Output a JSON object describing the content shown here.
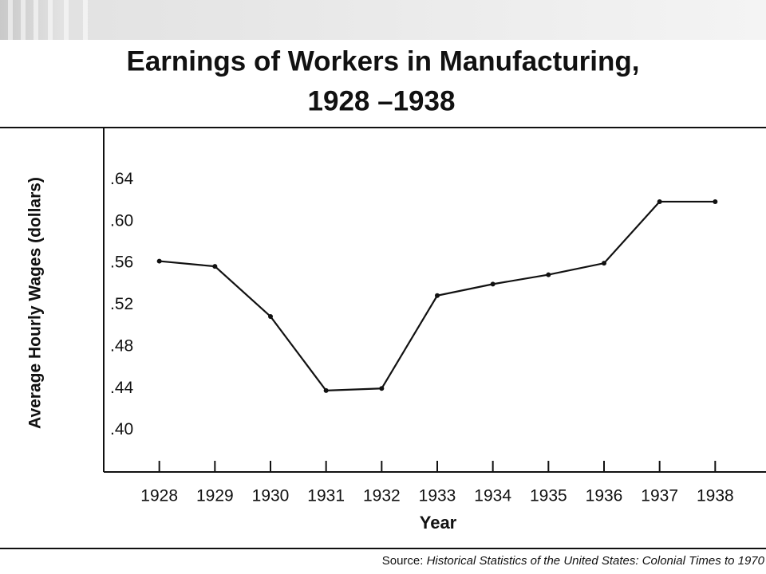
{
  "chart_data": {
    "type": "line",
    "title": "Earnings of Workers in Manufacturing,",
    "subtitle": "1928 –1938",
    "y_label": "Average Hourly Wages (dollars)",
    "x_label": "Year",
    "source_label": "Source:",
    "source_text": "Historical Statistics of the United States: Colonial Times to 1970",
    "x": [
      1928,
      1929,
      1930,
      1931,
      1932,
      1933,
      1934,
      1935,
      1936,
      1937,
      1938
    ],
    "values": [
      0.562,
      0.557,
      0.509,
      0.438,
      0.44,
      0.529,
      0.54,
      0.549,
      0.56,
      0.619,
      0.619
    ],
    "color": "#111111",
    "xlim": [
      1927,
      1939
    ],
    "xticks": [
      1928,
      1929,
      1930,
      1931,
      1932,
      1933,
      1934,
      1935,
      1936,
      1937,
      1938
    ],
    "ylim": [
      0.36,
      0.69
    ],
    "yticks": [
      {
        "value": 0.4,
        "label": ".40"
      },
      {
        "value": 0.44,
        "label": ".44"
      },
      {
        "value": 0.48,
        "label": ".48"
      },
      {
        "value": 0.52,
        "label": ".52"
      },
      {
        "value": 0.56,
        "label": ".56"
      },
      {
        "value": 0.6,
        "label": ".60"
      },
      {
        "value": 0.64,
        "label": ".64"
      }
    ],
    "grid": false
  }
}
